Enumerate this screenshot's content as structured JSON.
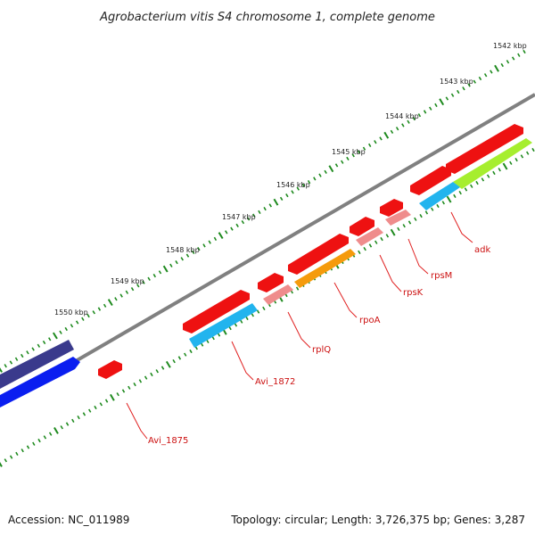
{
  "title": "Agrobacterium vitis S4 chromosome 1, complete genome",
  "footer": {
    "accession": "Accession: NC_011989",
    "summary": "Topology: circular; Length: 3,726,375 bp; Genes: 3,287"
  },
  "colors": {
    "backbone": "#808080",
    "tick": "#1e8a1e",
    "label_line": "#e02020",
    "label_text": "#cc1111",
    "cds_forward": "#ee1111",
    "rrna_blue": "#22b4ee",
    "rpsM_pink": "#ef8c8c",
    "rpoA_orange": "#f59b0c",
    "adk_green": "#a6ee2e",
    "dark_navy": "#3a3a8c",
    "bright_blue": "#0a1ef0"
  },
  "scale": {
    "unit": "kbp",
    "labels": [
      {
        "kbp": 1542,
        "text": "1542 kbp"
      },
      {
        "kbp": 1543,
        "text": "1543 kbp"
      },
      {
        "kbp": 1544,
        "text": "1544 kbp"
      },
      {
        "kbp": 1545,
        "text": "1545 kbp"
      },
      {
        "kbp": 1546,
        "text": "1546 kbp"
      },
      {
        "kbp": 1547,
        "text": "1547 kbp"
      },
      {
        "kbp": 1548,
        "text": "1548 kbp"
      },
      {
        "kbp": 1549,
        "text": "1549 kbp"
      },
      {
        "kbp": 1550,
        "text": "1550 kbp"
      }
    ]
  },
  "genes": [
    {
      "label": "adk"
    },
    {
      "label": "rpsM"
    },
    {
      "label": "rpsK"
    },
    {
      "label": "rpoA"
    },
    {
      "label": "rplQ"
    },
    {
      "label": "Avi_1872"
    },
    {
      "label": "Avi_1875"
    }
  ]
}
